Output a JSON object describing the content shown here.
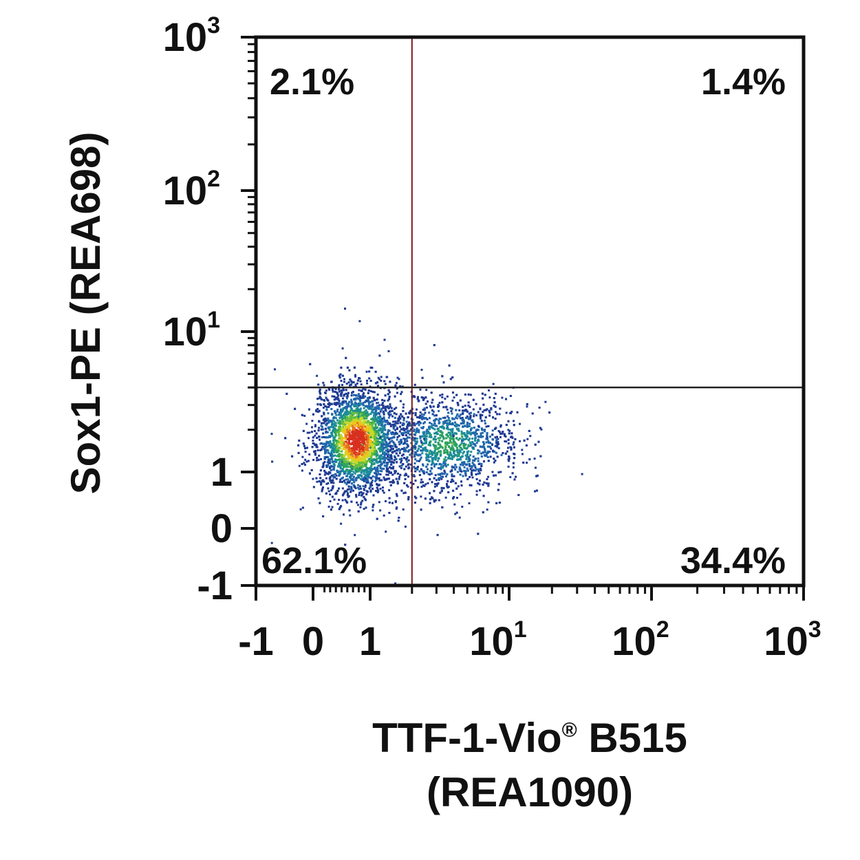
{
  "chart_data": {
    "type": "scatter",
    "subtype": "flow-cytometry-density-dot-plot",
    "xlabel_line1": "TTF-1-Vio",
    "xlabel_reg": "®",
    "xlabel_line1_suffix": " B515",
    "xlabel_line2": "(REA1090)",
    "ylabel": "Sox1-PE (REA698)",
    "x_scale": "biexponential",
    "y_scale": "biexponential",
    "xlim": [
      -1,
      1000
    ],
    "ylim": [
      -1,
      1000
    ],
    "x_ticks": [
      {
        "value": -1,
        "base": "-1",
        "exp": ""
      },
      {
        "value": 0,
        "base": "0",
        "exp": ""
      },
      {
        "value": 1,
        "base": "1",
        "exp": ""
      },
      {
        "value": 10,
        "base": "10",
        "exp": "1"
      },
      {
        "value": 100,
        "base": "10",
        "exp": "2"
      },
      {
        "value": 1000,
        "base": "10",
        "exp": "3"
      }
    ],
    "y_ticks": [
      {
        "value": -1,
        "base": "-1",
        "exp": ""
      },
      {
        "value": 0,
        "base": "0",
        "exp": ""
      },
      {
        "value": 1,
        "base": "1",
        "exp": ""
      },
      {
        "value": 10,
        "base": "10",
        "exp": "1"
      },
      {
        "value": 100,
        "base": "10",
        "exp": "2"
      },
      {
        "value": 1000,
        "base": "10",
        "exp": "3"
      }
    ],
    "gate_x": 2.0,
    "gate_y": 4.0,
    "quadrants": {
      "upper_left": "2.1%",
      "upper_right": "1.4%",
      "lower_left": "62.1%",
      "lower_right": "34.4%"
    },
    "populations": [
      {
        "name": "main",
        "center_x": 0.75,
        "center_y": 1.7,
        "weight": 0.62
      },
      {
        "name": "ttf1_positive",
        "center_x": 3.5,
        "center_y": 1.6,
        "weight": 0.36
      }
    ],
    "density_colors": [
      "#1f3a93",
      "#2166ac",
      "#1b8a9a",
      "#2ca25f",
      "#66bd3c",
      "#c7d92a",
      "#f0c419",
      "#e8731c",
      "#d7301f"
    ],
    "grid": false
  }
}
